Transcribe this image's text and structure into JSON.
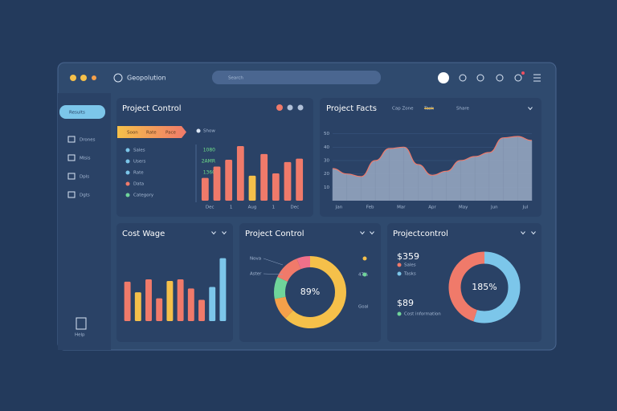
{
  "app": {
    "name": "Geopolution",
    "search": "Search"
  },
  "sidebar": {
    "active": "Results",
    "items": [
      "Drones",
      "Mlsis",
      "Dpls",
      "Dgts"
    ],
    "footer": "Help"
  },
  "charts": [
    {
      "type": "bar",
      "title": "Project Control",
      "pill": [
        "Soon",
        "Rate",
        "Pace"
      ],
      "filter": "Show",
      "legend": [
        "Sales",
        "Users",
        "Rate",
        "Data",
        "Category"
      ],
      "legend_values": [
        "1080",
        "2AMR",
        "1360"
      ],
      "values": [
        20,
        30,
        36,
        48,
        22,
        41,
        24,
        34,
        37
      ],
      "colors": [
        "#f07a6a",
        "#f07a6a",
        "#f07a6a",
        "#f07a6a",
        "#f5c04a",
        "#f07a6a",
        "#f07a6a",
        "#f07a6a",
        "#f07a6a"
      ],
      "ylim": [
        0,
        60
      ],
      "axis_labels": [
        "Dec",
        "1",
        "Aug",
        "1",
        "Dec"
      ]
    },
    {
      "type": "area",
      "title": "Project Facts",
      "legend": [
        "Cap Zone",
        "Task",
        "Share"
      ],
      "values": [
        24,
        20,
        18,
        30,
        39,
        40,
        27,
        19,
        22,
        30,
        33,
        36,
        47,
        48,
        45
      ],
      "color": "#9aaac4",
      "line": "#f07a6a",
      "ylim": [
        0,
        60
      ],
      "yticks": [
        10,
        20,
        30,
        40,
        50
      ],
      "axis_labels": [
        "Jan",
        "Feb",
        "Mar",
        "Apr",
        "May",
        "Jun",
        "Jul"
      ]
    },
    {
      "type": "bar",
      "title": "Cost Wage",
      "values": [
        52,
        38,
        55,
        30,
        53,
        55,
        43,
        28,
        45,
        83
      ],
      "colors": [
        "#f07a6a",
        "#f5c04a",
        "#f07a6a",
        "#f07a6a",
        "#f5c04a",
        "#f07a6a",
        "#f07a6a",
        "#f07a6a",
        "#7cc6ea",
        "#7cc6ea"
      ],
      "ylim": [
        0,
        90
      ]
    },
    {
      "type": "pie",
      "title": "Project Control",
      "center": "89%",
      "labels_left": [
        "Nova",
        "Aster"
      ],
      "labels_right": [
        "47%",
        "Goal"
      ],
      "values": [
        62,
        10,
        10,
        12,
        6
      ],
      "colors": [
        "#f5c04a",
        "#f5a04a",
        "#6fd49a",
        "#f07a6a",
        "#f0708a"
      ]
    },
    {
      "type": "pie",
      "title": "Projectcontrol",
      "center": "185%",
      "amount": "$359",
      "legend": [
        "Sales",
        "Tasks"
      ],
      "amount2": "$89",
      "note": "Cost information",
      "values": [
        55,
        45
      ],
      "colors": [
        "#7cc6ea",
        "#f07a6a"
      ]
    }
  ]
}
